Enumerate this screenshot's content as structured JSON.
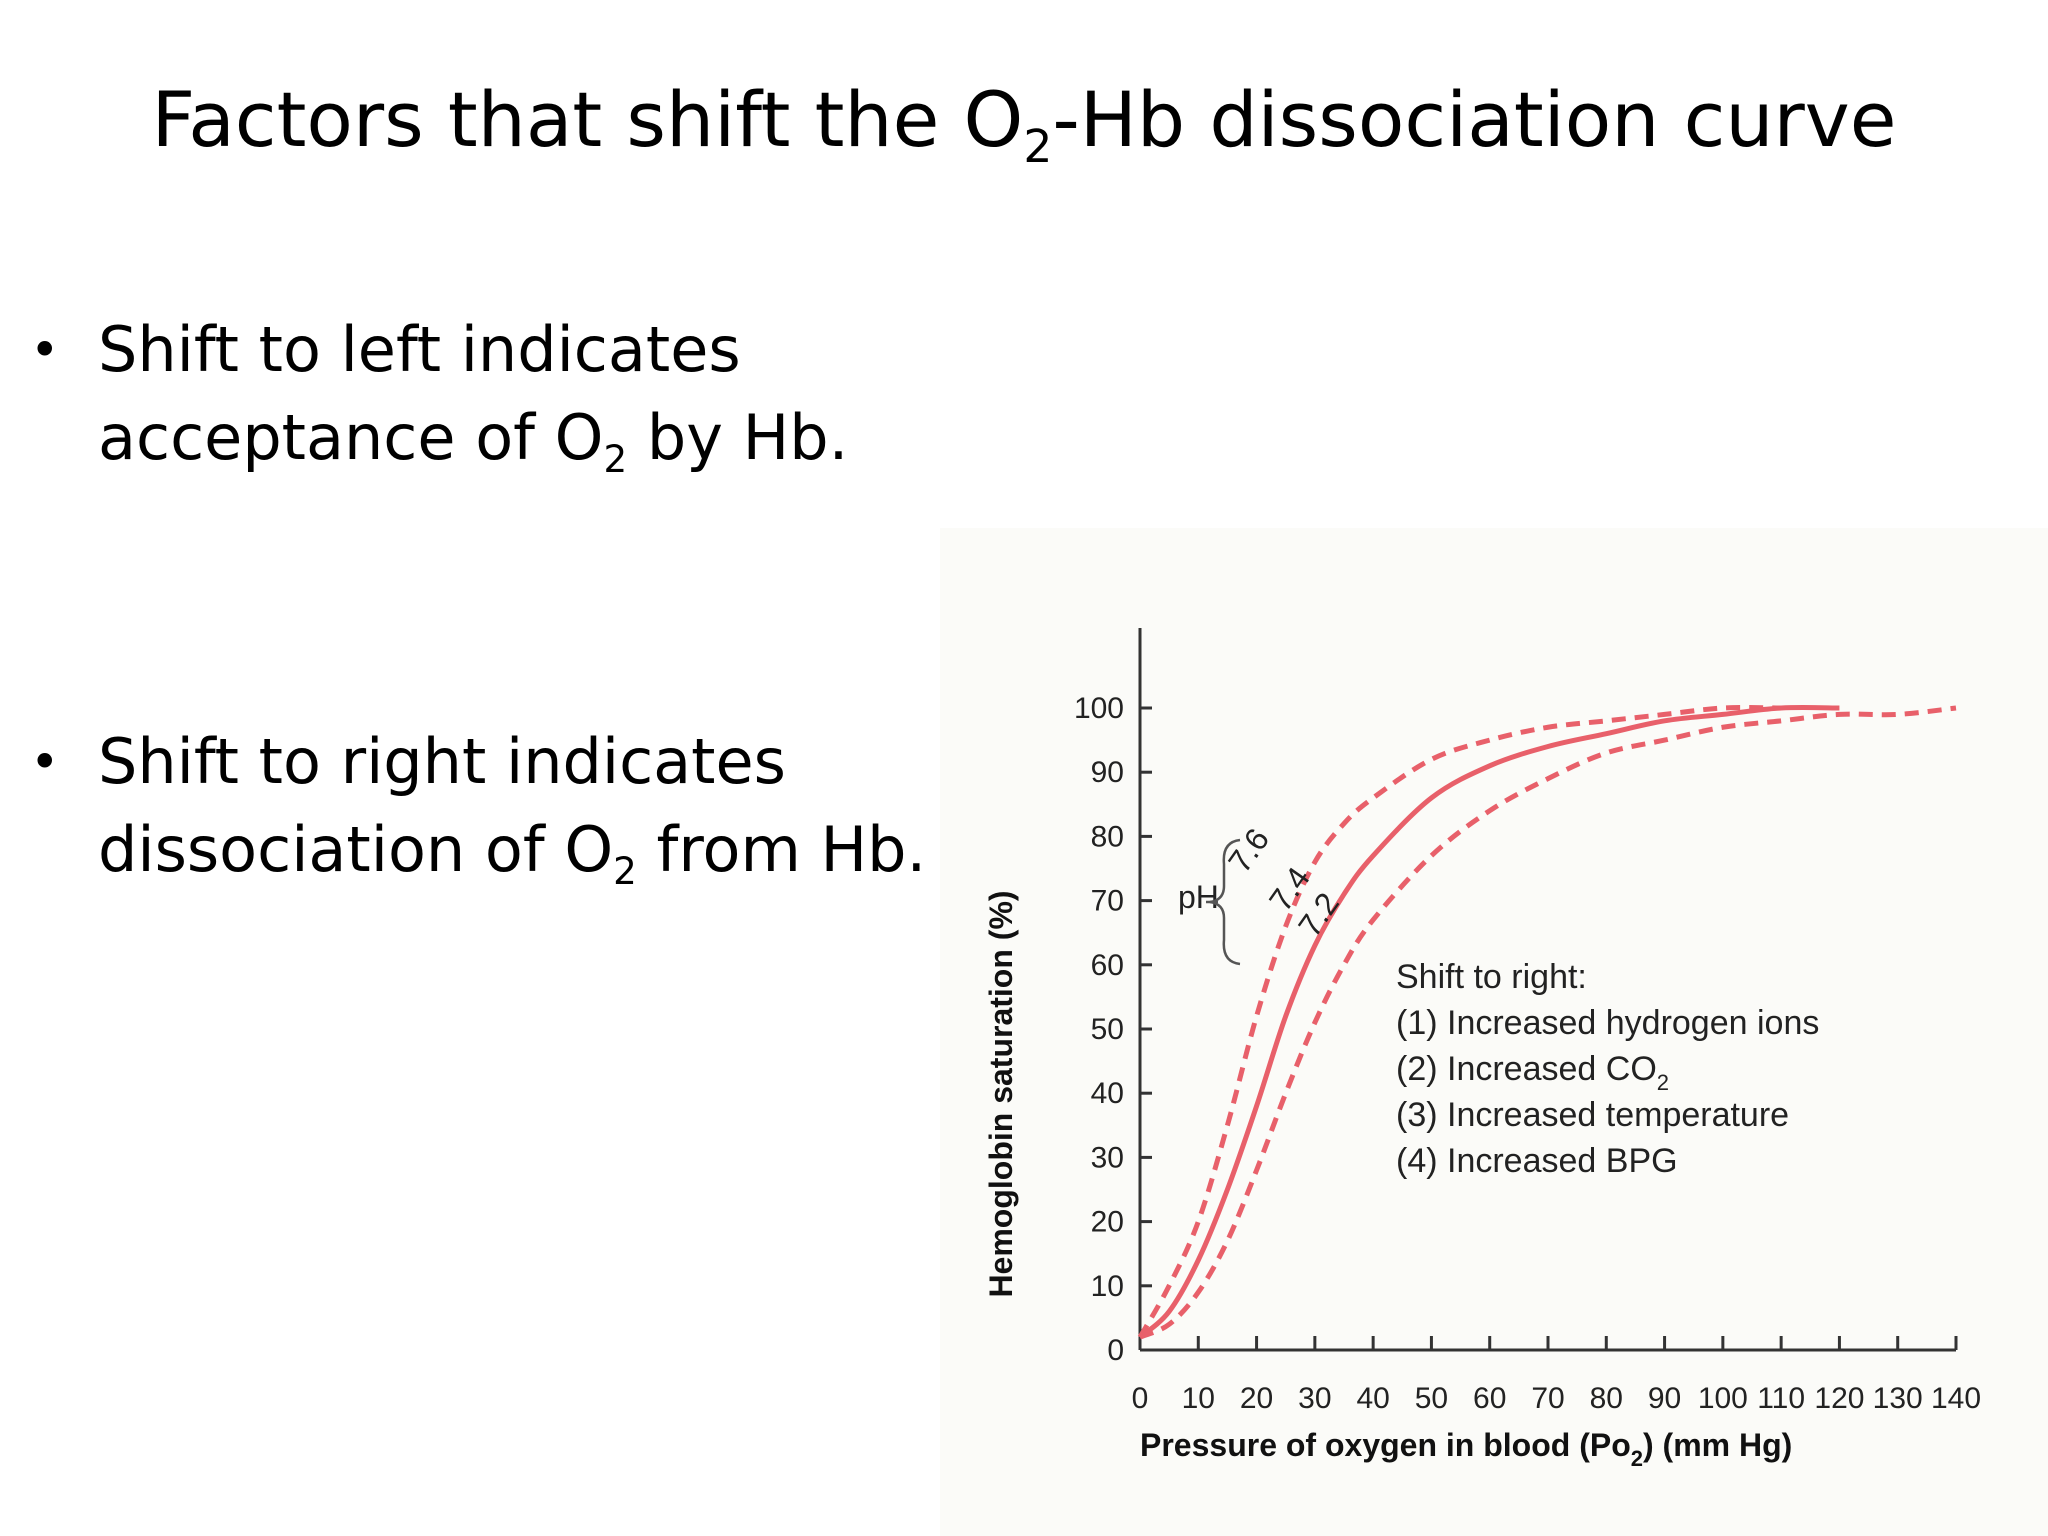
{
  "slide": {
    "title_pre": "Factors that shift the O",
    "title_sub": "2",
    "title_post": "-Hb dissociation curve",
    "bullets": [
      {
        "line1": "Shift to left indicates",
        "line2_pre": "acceptance of O",
        "line2_sub": "2",
        "line2_post": " by Hb."
      },
      {
        "line1": "Shift to right indicates",
        "line2_pre": "dissociation of O",
        "line2_sub": "2",
        "line2_post": " from Hb."
      }
    ],
    "bullet_symbol": "•"
  },
  "chart_data": {
    "type": "line",
    "title": "",
    "xlabel_pre": "Pressure of oxygen in blood (Po",
    "xlabel_sub": "2",
    "xlabel_post": ") (mm Hg)",
    "ylabel": "Hemoglobin saturation (%)",
    "xlim": [
      0,
      140
    ],
    "ylim": [
      0,
      100
    ],
    "x_ticks": [
      0,
      10,
      20,
      30,
      40,
      50,
      60,
      70,
      80,
      90,
      100,
      110,
      120,
      130,
      140
    ],
    "y_ticks": [
      0,
      10,
      20,
      30,
      40,
      50,
      60,
      70,
      80,
      90,
      100
    ],
    "grid": false,
    "line_color": "#e8606a",
    "series": [
      {
        "name": "7.6",
        "style": "dashed",
        "x": [
          0,
          5,
          10,
          15,
          20,
          25,
          30,
          35,
          40,
          50,
          60,
          70,
          80,
          90,
          100,
          110
        ],
        "y": [
          2,
          10,
          20,
          35,
          52,
          66,
          76,
          82,
          86,
          92,
          95,
          97,
          98,
          99,
          100,
          100
        ]
      },
      {
        "name": "7.4",
        "style": "solid",
        "x": [
          0,
          5,
          10,
          15,
          20,
          25,
          30,
          35,
          40,
          50,
          60,
          70,
          80,
          90,
          100,
          110,
          120
        ],
        "y": [
          2,
          6,
          14,
          25,
          38,
          52,
          63,
          71,
          77,
          86,
          91,
          94,
          96,
          98,
          99,
          100,
          100
        ]
      },
      {
        "name": "7.2",
        "style": "dashed",
        "x": [
          0,
          5,
          10,
          15,
          20,
          25,
          30,
          35,
          40,
          50,
          60,
          70,
          80,
          90,
          100,
          110,
          120,
          130,
          140
        ],
        "y": [
          2,
          4,
          9,
          17,
          28,
          40,
          51,
          60,
          67,
          77,
          84,
          89,
          93,
          95,
          97,
          98,
          99,
          99,
          100
        ]
      }
    ],
    "ph_label": "pH",
    "legend": {
      "title": "Shift to right:",
      "items": [
        {
          "text": "(1) Increased hydrogen ions"
        },
        {
          "text_pre": "(2) Increased CO",
          "text_sub": "2"
        },
        {
          "text": "(3) Increased temperature"
        },
        {
          "text": "(4) Increased BPG"
        }
      ]
    }
  }
}
